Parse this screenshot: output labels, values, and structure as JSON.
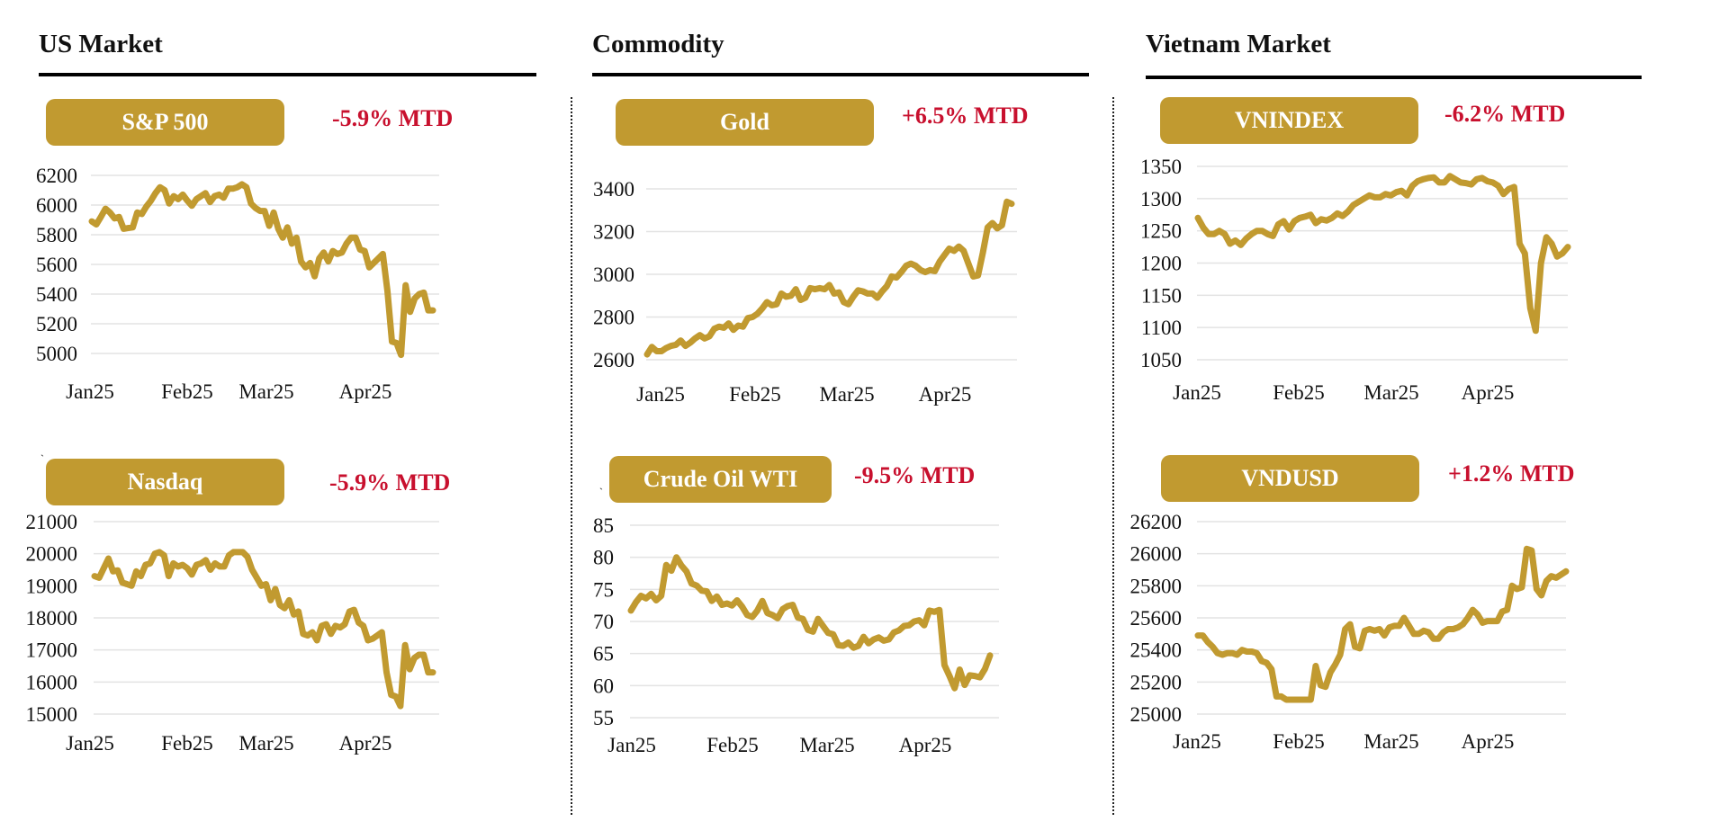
{
  "sections": [
    {
      "title": "US Market"
    },
    {
      "title": "Commodity"
    },
    {
      "title": "Vietnam Market"
    }
  ],
  "colors": {
    "accent": "#C19A30",
    "change": "#C8102E",
    "grid": "#e3e3e3"
  },
  "chart_data": [
    {
      "type": "line",
      "title": "S&P 500",
      "change_label": "-5.9% MTD",
      "xlabel": "",
      "ylabel": "",
      "ylim": [
        4950,
        6200
      ],
      "yticks": [
        6200,
        6000,
        5800,
        5600,
        5400,
        5200,
        5000
      ],
      "xtick_labels": [
        "Jan25",
        "Feb25",
        "Mar25",
        "Apr25"
      ],
      "xtick_index": [
        0,
        20,
        38,
        59
      ],
      "grid": true,
      "values": [
        5890,
        5870,
        5920,
        5975,
        5950,
        5910,
        5920,
        5840,
        5845,
        5850,
        5950,
        5940,
        5990,
        6030,
        6080,
        6120,
        6100,
        6010,
        6060,
        6040,
        6070,
        6030,
        5995,
        6040,
        6060,
        6080,
        6020,
        6060,
        6070,
        6050,
        6110,
        6110,
        6120,
        6140,
        6120,
        6010,
        5980,
        5960,
        5960,
        5860,
        5950,
        5840,
        5780,
        5850,
        5740,
        5780,
        5620,
        5580,
        5610,
        5520,
        5640,
        5680,
        5620,
        5690,
        5670,
        5680,
        5740,
        5780,
        5780,
        5700,
        5690,
        5580,
        5610,
        5640,
        5670,
        5420,
        5080,
        5070,
        4990,
        5460,
        5280,
        5370,
        5400,
        5410,
        5290,
        5290
      ]
    },
    {
      "type": "line",
      "title": "Nasdaq",
      "change_label": "-5.9% MTD",
      "xlabel": "",
      "ylabel": "",
      "ylim": [
        15000,
        21000
      ],
      "yticks": [
        21000,
        20000,
        19000,
        18000,
        17000,
        16000,
        15000
      ],
      "xtick_labels": [
        "Jan25",
        "Feb25",
        "Mar25",
        "Apr25"
      ],
      "xtick_index": [
        0,
        20,
        38,
        59
      ],
      "grid": true,
      "values": [
        19300,
        19250,
        19550,
        19850,
        19450,
        19480,
        19100,
        19050,
        19000,
        19450,
        19300,
        19650,
        19700,
        20000,
        20050,
        19950,
        19300,
        19700,
        19600,
        19650,
        19550,
        19350,
        19650,
        19700,
        19800,
        19500,
        19700,
        19600,
        19600,
        19950,
        20050,
        20050,
        20050,
        19900,
        19500,
        19250,
        19000,
        19050,
        18550,
        18900,
        18400,
        18300,
        18550,
        18100,
        18200,
        17500,
        17450,
        17550,
        17300,
        17750,
        17800,
        17500,
        17750,
        17700,
        17800,
        18200,
        18250,
        17850,
        17750,
        17300,
        17350,
        17450,
        17550,
        16300,
        15600,
        15550,
        15250,
        17150,
        16400,
        16750,
        16850,
        16850,
        16300,
        16300
      ]
    },
    {
      "type": "line",
      "title": "Gold",
      "change_label": "+6.5% MTD",
      "xlabel": "",
      "ylabel": "",
      "ylim": [
        2600,
        3400
      ],
      "yticks": [
        3400,
        3200,
        3000,
        2800,
        2600
      ],
      "xtick_labels": [
        "Jan25",
        "Feb25",
        "Mar25",
        "Apr25"
      ],
      "xtick_index": [
        0,
        20,
        38,
        59
      ],
      "grid": true,
      "values": [
        2625,
        2660,
        2640,
        2640,
        2655,
        2665,
        2670,
        2690,
        2665,
        2680,
        2700,
        2715,
        2700,
        2710,
        2745,
        2755,
        2750,
        2770,
        2740,
        2760,
        2755,
        2795,
        2800,
        2815,
        2840,
        2870,
        2855,
        2860,
        2910,
        2895,
        2900,
        2930,
        2880,
        2890,
        2935,
        2930,
        2935,
        2930,
        2950,
        2910,
        2915,
        2870,
        2860,
        2895,
        2925,
        2920,
        2910,
        2910,
        2890,
        2920,
        2945,
        2990,
        2985,
        3010,
        3040,
        3050,
        3040,
        3020,
        3010,
        3020,
        3015,
        3060,
        3090,
        3120,
        3110,
        3130,
        3110,
        3050,
        2990,
        2995,
        3100,
        3220,
        3240,
        3215,
        3230,
        3340,
        3330
      ]
    },
    {
      "type": "line",
      "title": "Crude Oil WTI",
      "change_label": "-9.5% MTD",
      "xlabel": "",
      "ylabel": "",
      "ylim": [
        55,
        85
      ],
      "yticks": [
        85,
        80,
        75,
        70,
        65,
        60,
        55
      ],
      "xtick_labels": [
        "Jan25",
        "Feb25",
        "Mar25",
        "Apr25"
      ],
      "xtick_index": [
        0,
        20,
        38,
        59
      ],
      "grid": true,
      "values": [
        71.7,
        73.0,
        74.0,
        73.6,
        74.3,
        73.3,
        74.0,
        78.8,
        77.9,
        80.0,
        78.7,
        77.8,
        75.9,
        75.6,
        74.8,
        74.7,
        73.2,
        73.9,
        72.6,
        72.8,
        72.5,
        73.3,
        72.3,
        71.0,
        70.7,
        71.7,
        73.2,
        71.3,
        71.0,
        70.5,
        71.9,
        72.4,
        72.6,
        70.6,
        70.4,
        68.7,
        68.4,
        70.4,
        69.3,
        68.2,
        68.0,
        66.3,
        66.2,
        66.7,
        65.9,
        66.2,
        67.6,
        66.6,
        67.2,
        67.5,
        67.0,
        67.2,
        68.3,
        68.6,
        69.3,
        69.4,
        70.0,
        70.2,
        69.4,
        71.7,
        71.5,
        71.8,
        63.2,
        61.5,
        59.6,
        62.5,
        60.1,
        61.6,
        61.5,
        61.3,
        62.6,
        64.7
      ]
    },
    {
      "type": "line",
      "title": "VNINDEX",
      "change_label": "-6.2% MTD",
      "xlabel": "",
      "ylabel": "",
      "ylim": [
        1050,
        1350
      ],
      "yticks": [
        1350,
        1300,
        1250,
        1200,
        1150,
        1100,
        1050
      ],
      "xtick_labels": [
        "Jan25",
        "Feb25",
        "Mar25",
        "Apr25"
      ],
      "xtick_index": [
        0,
        20,
        38,
        59
      ],
      "grid": true,
      "values": [
        1270,
        1255,
        1245,
        1245,
        1250,
        1245,
        1230,
        1235,
        1228,
        1238,
        1245,
        1250,
        1250,
        1245,
        1242,
        1260,
        1265,
        1252,
        1265,
        1270,
        1272,
        1275,
        1262,
        1268,
        1266,
        1270,
        1277,
        1273,
        1280,
        1290,
        1295,
        1300,
        1305,
        1302,
        1302,
        1307,
        1305,
        1310,
        1312,
        1305,
        1320,
        1327,
        1330,
        1332,
        1333,
        1325,
        1325,
        1335,
        1330,
        1325,
        1324,
        1322,
        1330,
        1332,
        1327,
        1325,
        1320,
        1307,
        1315,
        1318,
        1230,
        1215,
        1130,
        1095,
        1200,
        1240,
        1230,
        1210,
        1215,
        1225
      ]
    },
    {
      "type": "line",
      "title": "VNDUSD",
      "change_label": "+1.2% MTD",
      "xlabel": "",
      "ylabel": "",
      "ylim": [
        25000,
        26200
      ],
      "yticks": [
        26200,
        26000,
        25800,
        25600,
        25400,
        25200,
        25000
      ],
      "xtick_labels": [
        "Jan25",
        "Feb25",
        "Mar25",
        "Apr25"
      ],
      "xtick_index": [
        0,
        20,
        38,
        59
      ],
      "grid": true,
      "values": [
        25490,
        25490,
        25450,
        25420,
        25380,
        25370,
        25380,
        25380,
        25370,
        25400,
        25390,
        25390,
        25380,
        25330,
        25320,
        25280,
        25110,
        25110,
        25090,
        25090,
        25090,
        25090,
        25090,
        25090,
        25300,
        25180,
        25170,
        25260,
        25310,
        25370,
        25530,
        25560,
        25420,
        25410,
        25520,
        25530,
        25520,
        25530,
        25490,
        25540,
        25550,
        25550,
        25600,
        25550,
        25500,
        25500,
        25520,
        25510,
        25470,
        25470,
        25510,
        25530,
        25530,
        25540,
        25560,
        25600,
        25650,
        25620,
        25570,
        25580,
        25580,
        25580,
        25640,
        25650,
        25800,
        25780,
        25790,
        26030,
        26020,
        25780,
        25740,
        25830,
        25860,
        25850,
        25870,
        25890
      ]
    }
  ]
}
